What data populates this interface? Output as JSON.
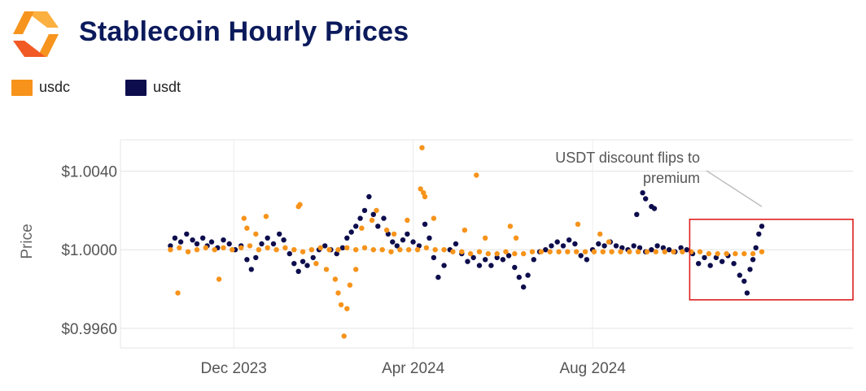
{
  "header": {
    "title": "Stablecoin Hourly Prices",
    "logo_colors": [
      "#f7941d",
      "#fbb040",
      "#f15a24"
    ]
  },
  "chart_data": {
    "type": "scatter",
    "title": "Stablecoin Hourly Prices",
    "xlabel": "",
    "ylabel": "Price",
    "x_range": [
      "2023-09-15",
      "2025-01-25"
    ],
    "ylim": [
      0.995,
      1.0056
    ],
    "x_ticks": [
      "2023-12-01",
      "2024-04-01",
      "2024-08-01"
    ],
    "x_tick_labels": [
      "Dec 2023",
      "Apr 2024",
      "Aug 2024"
    ],
    "y_ticks": [
      0.996,
      1.0,
      1.004
    ],
    "y_tick_labels": [
      "$0.9960",
      "$1.0000",
      "$1.0040"
    ],
    "grid": true,
    "legend_position": "top-left",
    "series": [
      {
        "name": "usdt",
        "color": "#0d0d4d",
        "points": [
          [
            "2023-10-19",
            1.0002
          ],
          [
            "2023-10-22",
            1.0006
          ],
          [
            "2023-10-26",
            1.0004
          ],
          [
            "2023-10-30",
            1.0008
          ],
          [
            "2023-11-03",
            1.0005
          ],
          [
            "2023-11-06",
            1.0003
          ],
          [
            "2023-11-10",
            1.0006
          ],
          [
            "2023-11-13",
            1.0002
          ],
          [
            "2023-11-16",
            1.0004
          ],
          [
            "2023-11-20",
            1.0001
          ],
          [
            "2023-11-24",
            1.0005
          ],
          [
            "2023-11-28",
            1.0003
          ],
          [
            "2023-12-02",
            1.0
          ],
          [
            "2023-12-06",
            1.0002
          ],
          [
            "2023-12-10",
            0.9995
          ],
          [
            "2023-12-13",
            0.999
          ],
          [
            "2023-12-16",
            0.9996
          ],
          [
            "2023-12-20",
            1.0003
          ],
          [
            "2023-12-24",
            1.0006
          ],
          [
            "2023-12-28",
            1.0003
          ],
          [
            "2024-01-01",
            1.0008
          ],
          [
            "2024-01-04",
            1.0005
          ],
          [
            "2024-01-08",
            0.9998
          ],
          [
            "2024-01-11",
            0.9993
          ],
          [
            "2024-01-14",
            0.9989
          ],
          [
            "2024-01-17",
            0.9994
          ],
          [
            "2024-01-20",
            0.9992
          ],
          [
            "2024-01-24",
            0.9996
          ],
          [
            "2024-01-28",
            1.0
          ],
          [
            "2024-02-01",
            1.0002
          ],
          [
            "2024-02-05",
            1.0
          ],
          [
            "2024-02-09",
            0.9998
          ],
          [
            "2024-02-13",
            1.0001
          ],
          [
            "2024-02-16",
            1.0006
          ],
          [
            "2024-02-19",
            1.0009
          ],
          [
            "2024-02-22",
            1.0012
          ],
          [
            "2024-02-25",
            1.0016
          ],
          [
            "2024-02-28",
            1.002
          ],
          [
            "2024-03-02",
            1.0027
          ],
          [
            "2024-03-05",
            1.0018
          ],
          [
            "2024-03-08",
            1.0012
          ],
          [
            "2024-03-12",
            1.0016
          ],
          [
            "2024-03-15",
            1.0008
          ],
          [
            "2024-03-18",
            1.0004
          ],
          [
            "2024-03-21",
            1.0002
          ],
          [
            "2024-03-25",
            1.0005
          ],
          [
            "2024-03-28",
            1.0008
          ],
          [
            "2024-04-01",
            1.0004
          ],
          [
            "2024-04-05",
            1.0002
          ],
          [
            "2024-04-09",
            1.0013
          ],
          [
            "2024-04-12",
            1.0006
          ],
          [
            "2024-04-15",
            0.9996
          ],
          [
            "2024-04-18",
            0.9986
          ],
          [
            "2024-04-22",
            0.9992
          ],
          [
            "2024-04-26",
            1.0
          ],
          [
            "2024-04-30",
            1.0003
          ],
          [
            "2024-05-04",
            0.9998
          ],
          [
            "2024-05-08",
            0.9994
          ],
          [
            "2024-05-12",
            0.9996
          ],
          [
            "2024-05-16",
            0.9992
          ],
          [
            "2024-05-20",
            0.9995
          ],
          [
            "2024-05-24",
            0.9992
          ],
          [
            "2024-05-28",
            0.9996
          ],
          [
            "2024-06-01",
            0.9995
          ],
          [
            "2024-06-05",
            0.9997
          ],
          [
            "2024-06-09",
            0.9991
          ],
          [
            "2024-06-12",
            0.9986
          ],
          [
            "2024-06-15",
            0.9981
          ],
          [
            "2024-06-18",
            0.9987
          ],
          [
            "2024-06-22",
            0.9995
          ],
          [
            "2024-06-26",
            0.9999
          ],
          [
            "2024-06-30",
            1.0
          ],
          [
            "2024-07-04",
            1.0002
          ],
          [
            "2024-07-08",
            1.0004
          ],
          [
            "2024-07-12",
            1.0002
          ],
          [
            "2024-07-16",
            1.0005
          ],
          [
            "2024-07-20",
            1.0003
          ],
          [
            "2024-07-24",
            0.9997
          ],
          [
            "2024-07-28",
            0.9995
          ],
          [
            "2024-08-01",
            1.0
          ],
          [
            "2024-08-05",
            1.0003
          ],
          [
            "2024-08-09",
            1.0002
          ],
          [
            "2024-08-13",
            1.0004
          ],
          [
            "2024-08-17",
            1.0002
          ],
          [
            "2024-08-21",
            1.0001
          ],
          [
            "2024-08-25",
            1.0
          ],
          [
            "2024-08-29",
            1.0002
          ],
          [
            "2024-09-02",
            1.0001
          ],
          [
            "2024-09-06",
            0.9999
          ],
          [
            "2024-09-10",
            1.0
          ],
          [
            "2024-09-14",
            1.0002
          ],
          [
            "2024-09-18",
            1.0001
          ],
          [
            "2024-09-22",
            1.0
          ],
          [
            "2024-09-26",
            0.9999
          ],
          [
            "2024-09-30",
            1.0001
          ],
          [
            "2024-10-04",
            1.0
          ],
          [
            "2024-10-08",
            0.9998
          ],
          [
            "2024-10-12",
            0.9993
          ],
          [
            "2024-10-16",
            0.9996
          ],
          [
            "2024-10-20",
            0.9992
          ],
          [
            "2024-10-24",
            0.9996
          ],
          [
            "2024-10-28",
            0.9994
          ],
          [
            "2024-11-01",
            0.9997
          ],
          [
            "2024-11-05",
            0.9993
          ],
          [
            "2024-11-09",
            0.9987
          ],
          [
            "2024-11-12",
            0.9984
          ],
          [
            "2024-11-14",
            0.9978
          ],
          [
            "2024-11-16",
            0.999
          ],
          [
            "2024-11-18",
            0.9995
          ],
          [
            "2024-11-20",
            1.0001
          ],
          [
            "2024-11-22",
            1.0008
          ],
          [
            "2024-11-24",
            1.0012
          ],
          [
            "2024-09-04",
            1.0029
          ],
          [
            "2024-09-06",
            1.0026
          ],
          [
            "2024-08-31",
            1.0018
          ],
          [
            "2024-09-10",
            1.0022
          ],
          [
            "2024-09-12",
            1.0021
          ]
        ]
      },
      {
        "name": "usdc",
        "color": "#f7931a",
        "points": [
          [
            "2023-10-19",
            1.0
          ],
          [
            "2023-10-25",
            1.0001
          ],
          [
            "2023-10-31",
            0.9999
          ],
          [
            "2023-11-06",
            1.0
          ],
          [
            "2023-11-12",
            1.0001
          ],
          [
            "2023-11-18",
            1.0
          ],
          [
            "2023-11-24",
            1.0001
          ],
          [
            "2023-11-30",
            1.0
          ],
          [
            "2023-12-06",
            1.0001
          ],
          [
            "2023-12-12",
            1.0002
          ],
          [
            "2023-12-18",
            1.0
          ],
          [
            "2023-12-24",
            1.0001
          ],
          [
            "2023-12-30",
            1.0
          ],
          [
            "2024-01-05",
            1.0001
          ],
          [
            "2024-01-11",
            1.0
          ],
          [
            "2024-01-17",
            0.9999
          ],
          [
            "2024-01-23",
            1.0
          ],
          [
            "2024-01-29",
            1.0001
          ],
          [
            "2024-02-04",
            1.0
          ],
          [
            "2024-02-10",
            1.0
          ],
          [
            "2024-02-16",
            1.0001
          ],
          [
            "2024-02-22",
            1.0
          ],
          [
            "2024-02-28",
            1.0001
          ],
          [
            "2024-03-05",
            1.0
          ],
          [
            "2024-03-11",
            1.0
          ],
          [
            "2024-03-17",
            0.9999
          ],
          [
            "2024-03-23",
            1.0
          ],
          [
            "2024-03-29",
            1.0
          ],
          [
            "2024-04-04",
            1.0
          ],
          [
            "2024-04-10",
            1.0001
          ],
          [
            "2024-04-16",
            1.0
          ],
          [
            "2024-04-22",
            1.0
          ],
          [
            "2024-04-28",
            0.9999
          ],
          [
            "2024-05-04",
            0.9999
          ],
          [
            "2024-05-10",
            0.9998
          ],
          [
            "2024-05-16",
            0.9999
          ],
          [
            "2024-05-22",
            0.9998
          ],
          [
            "2024-05-28",
            0.9998
          ],
          [
            "2024-06-03",
            0.9999
          ],
          [
            "2024-06-09",
            0.9998
          ],
          [
            "2024-06-15",
            0.9998
          ],
          [
            "2024-06-21",
            0.9999
          ],
          [
            "2024-06-27",
            0.9999
          ],
          [
            "2024-07-03",
            0.9999
          ],
          [
            "2024-07-09",
            0.9999
          ],
          [
            "2024-07-15",
            0.9999
          ],
          [
            "2024-07-21",
            0.9999
          ],
          [
            "2024-07-27",
            0.9999
          ],
          [
            "2024-08-02",
            0.9999
          ],
          [
            "2024-08-08",
            0.9999
          ],
          [
            "2024-08-14",
            0.9999
          ],
          [
            "2024-08-20",
            0.9999
          ],
          [
            "2024-08-26",
            0.9999
          ],
          [
            "2024-09-01",
            0.9999
          ],
          [
            "2024-09-07",
            0.9999
          ],
          [
            "2024-09-13",
            0.9999
          ],
          [
            "2024-09-19",
            0.9999
          ],
          [
            "2024-09-25",
            0.9999
          ],
          [
            "2024-10-01",
            0.9999
          ],
          [
            "2024-10-07",
            0.9999
          ],
          [
            "2024-10-13",
            0.9999
          ],
          [
            "2024-10-19",
            0.9998
          ],
          [
            "2024-10-25",
            0.9998
          ],
          [
            "2024-10-31",
            0.9998
          ],
          [
            "2024-11-06",
            0.9998
          ],
          [
            "2024-11-12",
            0.9998
          ],
          [
            "2024-11-18",
            0.9998
          ],
          [
            "2024-11-24",
            0.9999
          ],
          [
            "2023-10-24",
            0.9978
          ],
          [
            "2023-11-21",
            0.9985
          ],
          [
            "2023-12-08",
            1.0016
          ],
          [
            "2023-12-10",
            1.0011
          ],
          [
            "2023-12-16",
            1.0008
          ],
          [
            "2023-12-23",
            1.0017
          ],
          [
            "2024-01-14",
            1.0022
          ],
          [
            "2024-01-15",
            1.0023
          ],
          [
            "2024-01-26",
            0.9993
          ],
          [
            "2024-02-02",
            0.999
          ],
          [
            "2024-02-08",
            0.9985
          ],
          [
            "2024-02-10",
            0.9978
          ],
          [
            "2024-02-12",
            0.9972
          ],
          [
            "2024-02-14",
            0.9956
          ],
          [
            "2024-02-16",
            0.997
          ],
          [
            "2024-02-18",
            0.9982
          ],
          [
            "2024-02-22",
            0.999
          ],
          [
            "2024-02-26",
            1.0011
          ],
          [
            "2024-03-04",
            1.0015
          ],
          [
            "2024-03-07",
            1.002
          ],
          [
            "2024-03-14",
            1.001
          ],
          [
            "2024-03-19",
            1.0008
          ],
          [
            "2024-03-28",
            1.0015
          ],
          [
            "2024-04-06",
            1.0031
          ],
          [
            "2024-04-07",
            1.0052
          ],
          [
            "2024-04-08",
            1.0029
          ],
          [
            "2024-04-09",
            1.0027
          ],
          [
            "2024-04-15",
            1.0016
          ],
          [
            "2024-05-06",
            1.001
          ],
          [
            "2024-05-14",
            1.0038
          ],
          [
            "2024-05-20",
            1.0006
          ],
          [
            "2024-06-06",
            1.0012
          ],
          [
            "2024-06-10",
            1.0006
          ],
          [
            "2024-07-22",
            1.0013
          ],
          [
            "2024-08-06",
            1.0008
          ],
          [
            "2024-08-12",
            1.0004
          ]
        ]
      }
    ],
    "annotations": [
      {
        "text_lines": [
          "USDT discount flips to",
          "premium"
        ],
        "target": [
          "2024-11-24",
          1.0022
        ]
      }
    ],
    "highlight_box": {
      "x_from": "2024-10-06",
      "x_to": "2025-01-25",
      "y_from": 0.99745,
      "y_to": 1.00155,
      "color": "#e02020"
    }
  }
}
